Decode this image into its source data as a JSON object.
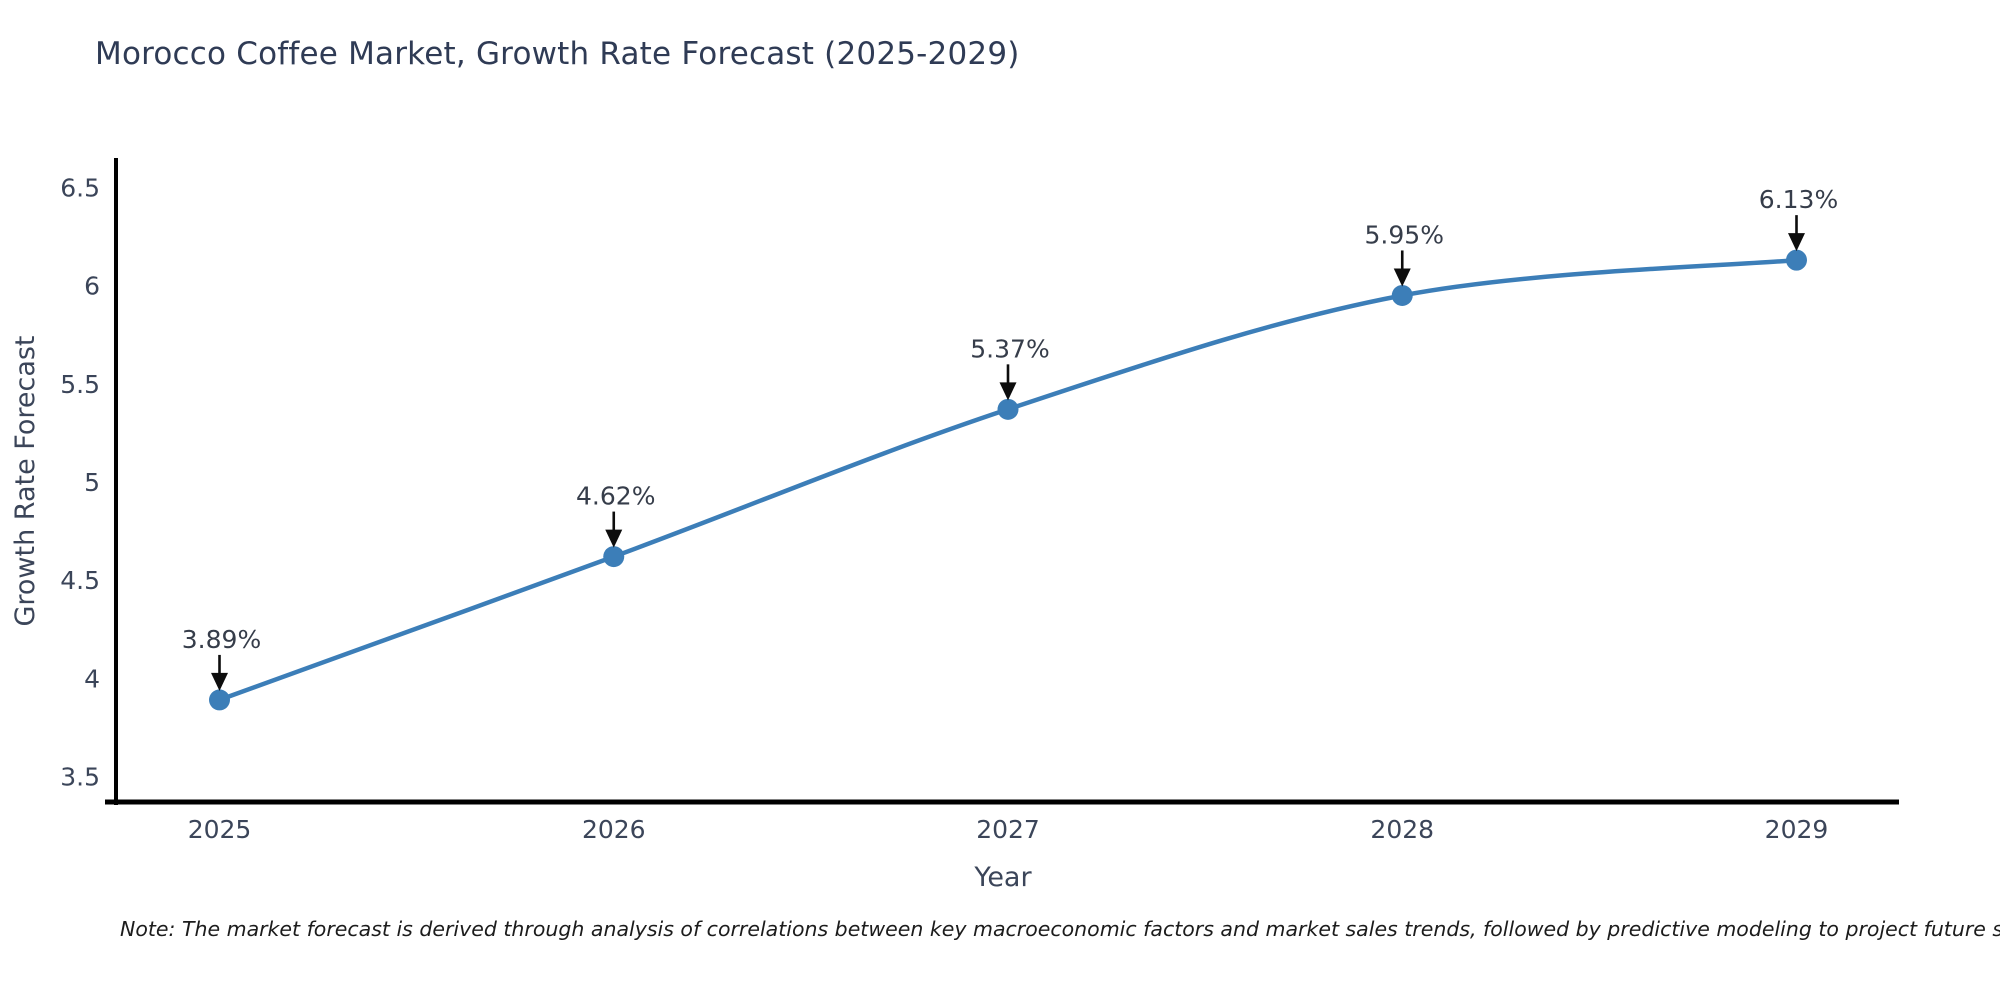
{
  "title": "Morocco Coffee Market, Growth Rate Forecast (2025-2029)",
  "note": "Note: The market forecast is derived through analysis of correlations between key macroeconomic factors and market sales trends, followed by predictive modeling to project future sales",
  "colors": {
    "line": "#3c7eb8",
    "marker": "#3c7eb8",
    "axis": "#000000",
    "title_text": "#2f3b55",
    "tick_text": "#3b4559",
    "annotation_text": "#363d4a",
    "arrow": "#0d0d0d"
  },
  "chart_data": {
    "type": "line",
    "x": [
      2025,
      2026,
      2027,
      2028,
      2029
    ],
    "values": [
      3.89,
      4.62,
      5.37,
      5.95,
      6.13
    ],
    "point_labels": [
      "3.89%",
      "4.62%",
      "5.37%",
      "5.95%",
      "6.13%"
    ],
    "series_name": "Growth Rate Forecast",
    "xlabel": "Year",
    "ylabel": "Growth Rate Forecast",
    "xtick_labels": [
      "2025",
      "2026",
      "2027",
      "2028",
      "2029"
    ],
    "ytick_values": [
      3.5,
      4,
      4.5,
      5,
      5.5,
      6,
      6.5
    ],
    "ytick_labels": [
      "3.5",
      "4",
      "4.5",
      "5",
      "5.5",
      "6",
      "6.5"
    ],
    "xlim": [
      2024.74,
      2029.26
    ],
    "ylim": [
      3.37,
      6.64
    ],
    "grid": false,
    "legend": "none",
    "line_shape": "spline",
    "markers": true,
    "annotations": "value above each point with downward arrow"
  }
}
